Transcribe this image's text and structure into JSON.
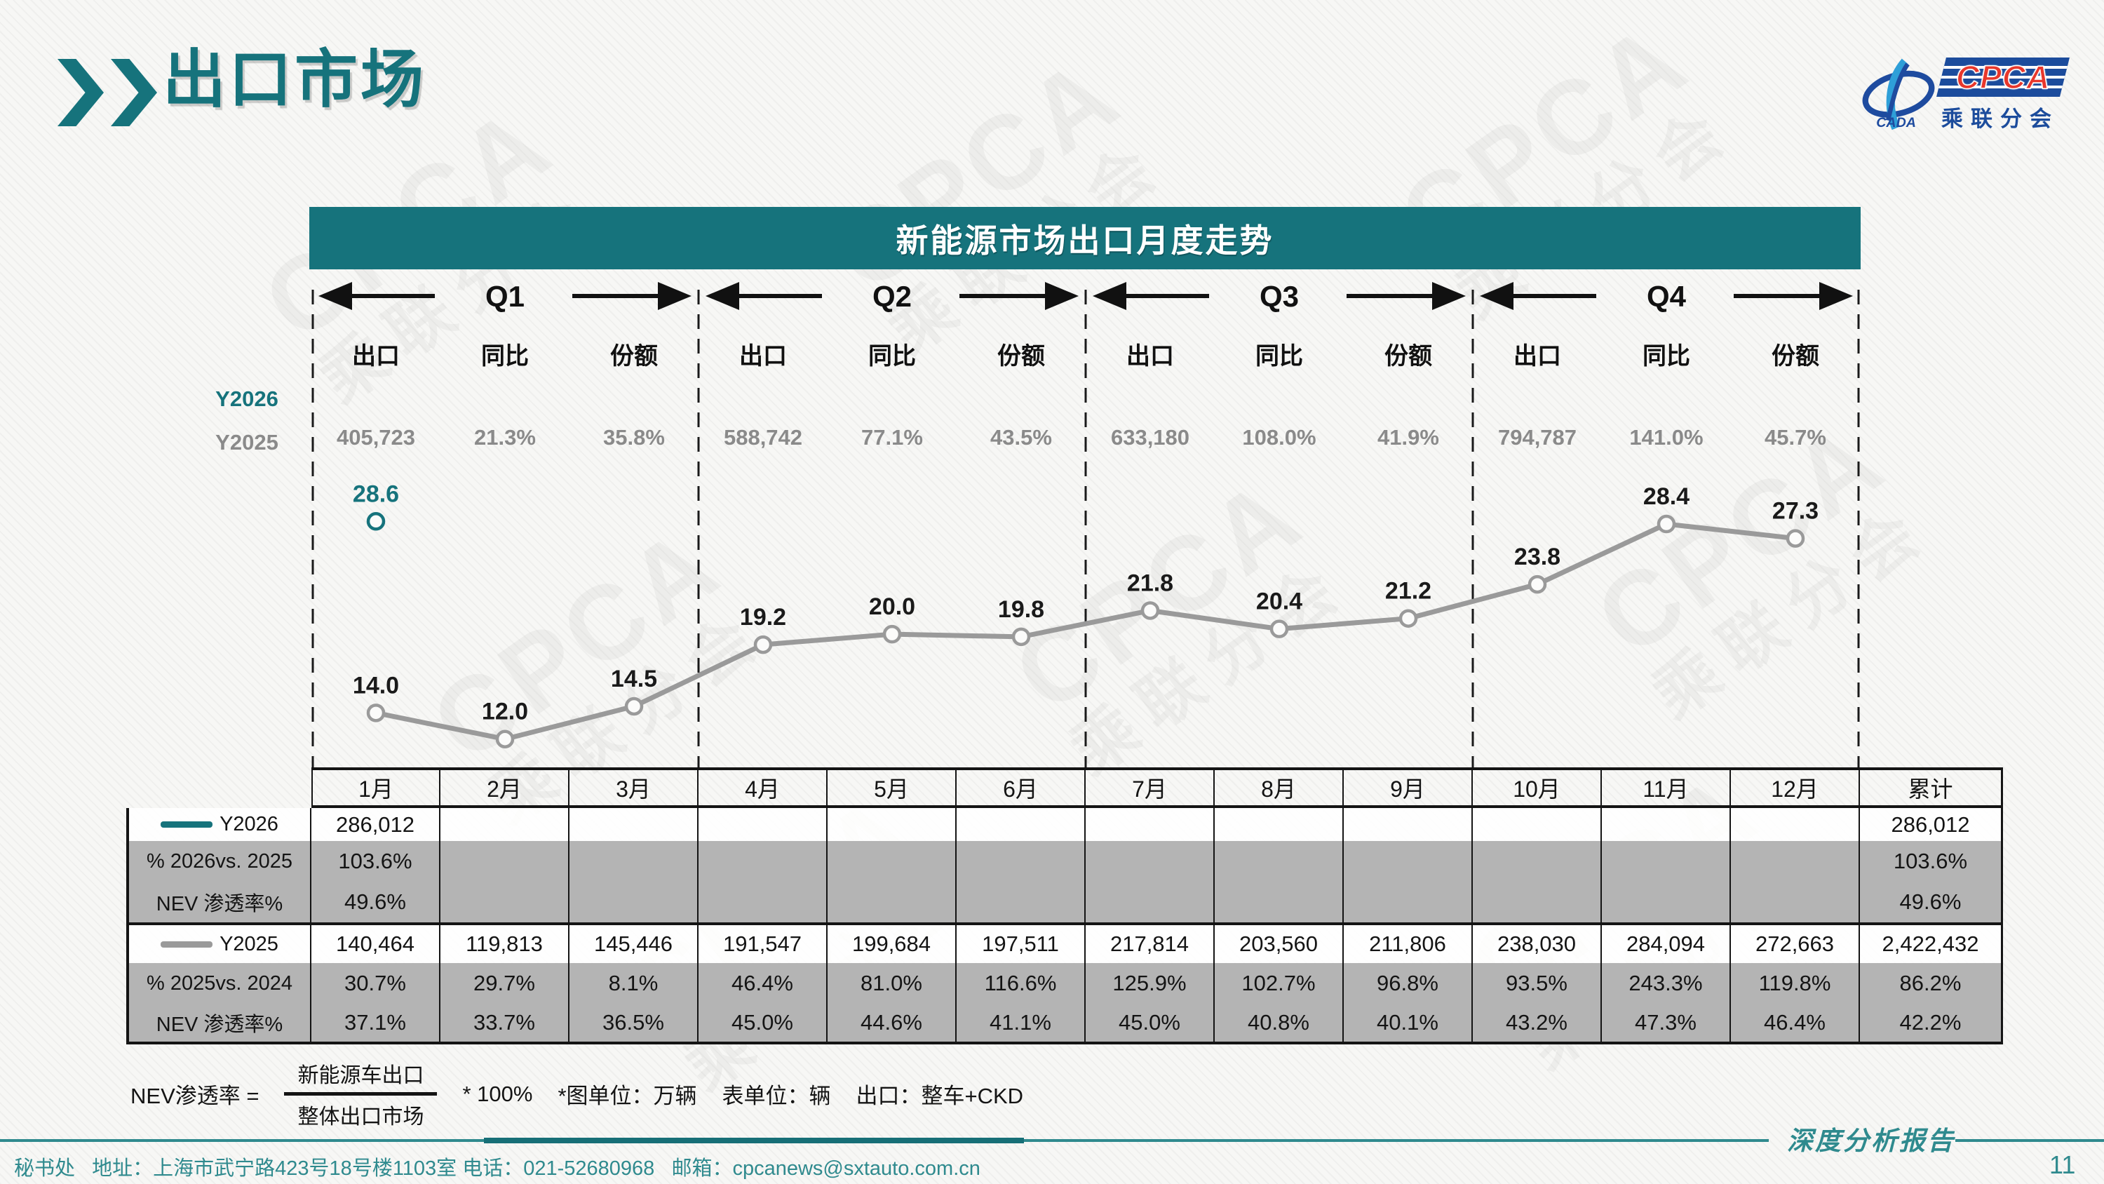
{
  "page": {
    "title": "出口市场",
    "report_label": "深度分析报告",
    "page_number": "11",
    "footer": "秘书处   地址：上海市武宁路423号18号楼1103室 电话：021-52680968   邮箱：cpcanews@sxtauto.com.cn"
  },
  "logo": {
    "cpca": "CPCA",
    "cada": "CADA",
    "subtitle": "乘联分会"
  },
  "watermark": {
    "line1": "CPCA",
    "line2": "乘联分会"
  },
  "chart": {
    "title": "新能源市场出口月度走势",
    "quarters": [
      "Q1",
      "Q2",
      "Q3",
      "Q4"
    ],
    "col_headers": [
      "出口",
      "同比",
      "份额"
    ],
    "series_labels": {
      "y2026": "Y2026",
      "y2025": "Y2025"
    },
    "quarterly_y2025": [
      {
        "export": "405,723",
        "yoy": "21.3%",
        "share": "35.8%"
      },
      {
        "export": "588,742",
        "yoy": "77.1%",
        "share": "43.5%"
      },
      {
        "export": "633,180",
        "yoy": "108.0%",
        "share": "41.9%"
      },
      {
        "export": "794,787",
        "yoy": "141.0%",
        "share": "45.7%"
      }
    ]
  },
  "chart_data": {
    "type": "line",
    "title": "新能源市场出口月度走势",
    "x_categories": [
      "1月",
      "2月",
      "3月",
      "4月",
      "5月",
      "6月",
      "7月",
      "8月",
      "9月",
      "10月",
      "11月",
      "12月"
    ],
    "unit_note": "万辆",
    "ylim": [
      9.9,
      32
    ],
    "grid": "dashed vertical quarter separators",
    "legend_position": "table left column",
    "series": [
      {
        "name": "Y2026",
        "color": "#16737c",
        "label_color": "#16737c",
        "values": [
          28.6,
          null,
          null,
          null,
          null,
          null,
          null,
          null,
          null,
          null,
          null,
          null
        ]
      },
      {
        "name": "Y2025",
        "color": "#9a9a9a",
        "label_color": "#1a1a1a",
        "values": [
          14.0,
          12.0,
          14.5,
          19.2,
          20.0,
          19.8,
          21.8,
          20.4,
          21.2,
          23.8,
          28.4,
          27.3
        ]
      }
    ]
  },
  "table": {
    "month_headers": [
      "1月",
      "2月",
      "3月",
      "4月",
      "5月",
      "6月",
      "7月",
      "8月",
      "9月",
      "10月",
      "11月",
      "12月",
      "累计"
    ],
    "rows": [
      {
        "label": "Y2026",
        "swatch": "#16737c",
        "bg": "white",
        "values": [
          "286,012",
          "",
          "",
          "",
          "",
          "",
          "",
          "",
          "",
          "",
          "",
          "",
          "286,012"
        ]
      },
      {
        "label": "% 2026vs. 2025",
        "bg": "gray",
        "values": [
          "103.6%",
          "",
          "",
          "",
          "",
          "",
          "",
          "",
          "",
          "",
          "",
          "",
          "103.6%"
        ]
      },
      {
        "label": "NEV 渗透率%",
        "bg": "gray",
        "values": [
          "49.6%",
          "",
          "",
          "",
          "",
          "",
          "",
          "",
          "",
          "",
          "",
          "",
          "49.6%"
        ]
      },
      {
        "label": "Y2025",
        "swatch": "#9a9a9a",
        "bg": "white",
        "values": [
          "140,464",
          "119,813",
          "145,446",
          "191,547",
          "199,684",
          "197,511",
          "217,814",
          "203,560",
          "211,806",
          "238,030",
          "284,094",
          "272,663",
          "2,422,432"
        ]
      },
      {
        "label": "% 2025vs. 2024",
        "bg": "gray",
        "values": [
          "30.7%",
          "29.7%",
          "8.1%",
          "46.4%",
          "81.0%",
          "116.6%",
          "125.9%",
          "102.7%",
          "96.8%",
          "93.5%",
          "243.3%",
          "119.8%",
          "86.2%"
        ]
      },
      {
        "label": "NEV 渗透率%",
        "bg": "gray",
        "values": [
          "37.1%",
          "33.7%",
          "36.5%",
          "45.0%",
          "44.6%",
          "41.1%",
          "45.0%",
          "40.8%",
          "40.1%",
          "43.2%",
          "47.3%",
          "46.4%",
          "42.2%"
        ]
      }
    ]
  },
  "formula": {
    "lhs": "NEV渗透率 =",
    "numerator": "新能源车出口",
    "denominator": "整体出口市场",
    "multiplier": "* 100%",
    "notes": [
      "*图单位：万辆",
      "表单位：辆",
      "出口：整车+CKD"
    ]
  }
}
